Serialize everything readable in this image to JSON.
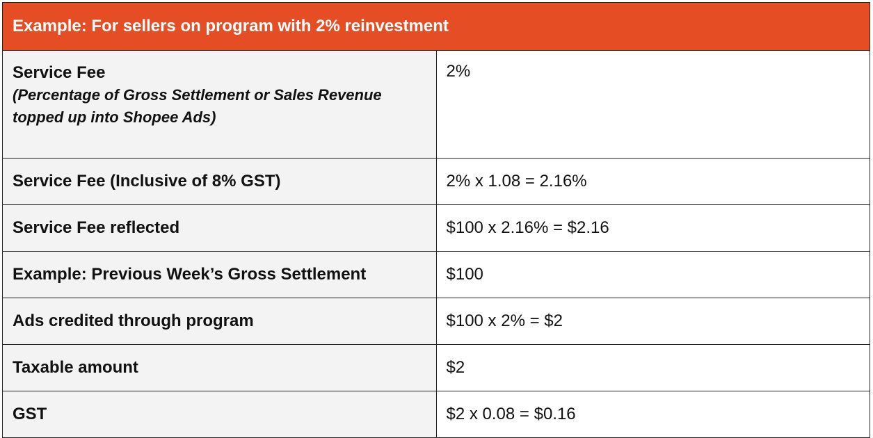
{
  "table": {
    "title": "Example: For sellers on program with 2% reinvestment",
    "service_fee": {
      "label": "Service Fee",
      "sub_line1": "(Percentage of Gross Settlement or Sales Revenue",
      "sub_line2": "topped up into Shopee Ads)",
      "value": "2%"
    },
    "rows": [
      {
        "label": "Service Fee (Inclusive of 8% GST)",
        "value": "2% x 1.08 = 2.16%"
      },
      {
        "label": "Service Fee reflected",
        "value": "$100 x 2.16% = $2.16"
      },
      {
        "label": "Example: Previous Week’s Gross Settlement",
        "value": "$100"
      },
      {
        "label": "Ads credited through program",
        "value": "$100 x 2% = $2"
      },
      {
        "label": "Taxable amount",
        "value": "$2"
      },
      {
        "label": "GST",
        "value": "$2 x 0.08 = $0.16"
      }
    ]
  }
}
